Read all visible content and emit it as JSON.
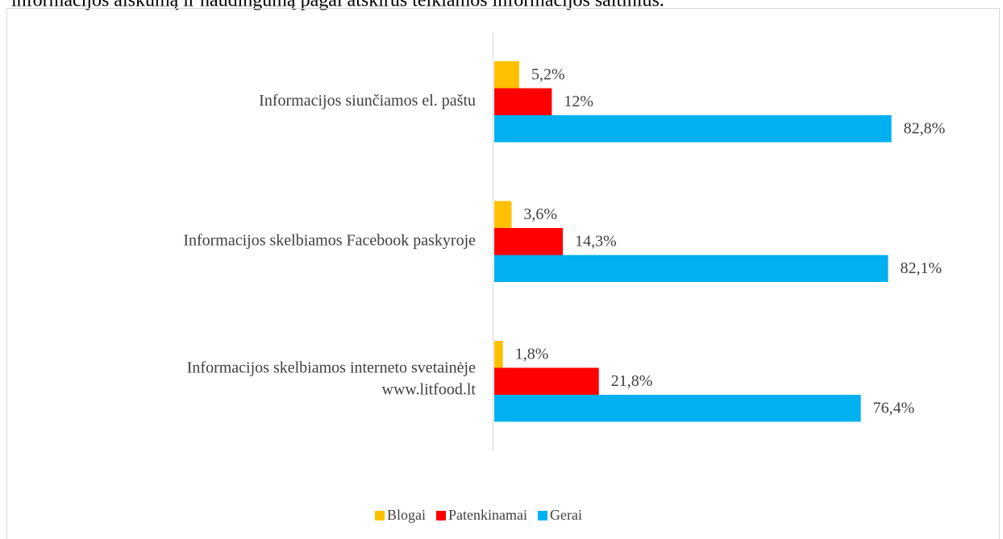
{
  "caption": "informacijos aiškumą ir naudingumą pagal atskirus teikiamos informacijos šaltinius.",
  "chart_data": {
    "type": "bar",
    "orientation": "horizontal",
    "categories": [
      "Informacijos siunčiamos el. paštu",
      "Informacijos skelbiamos Facebook paskyroje",
      [
        "Informacijos skelbiamos interneto svetainėje",
        "www.litfood.lt"
      ]
    ],
    "series": [
      {
        "name": "Blogai",
        "color": "#ffc000",
        "values": [
          5.2,
          3.6,
          1.8
        ],
        "value_labels": [
          "5,2%",
          "3,6%",
          "1,8%"
        ]
      },
      {
        "name": "Patenkinamai",
        "color": "#ff0000",
        "values": [
          12,
          14.3,
          21.8
        ],
        "value_labels": [
          "12%",
          "14,3%",
          "21,8%"
        ]
      },
      {
        "name": "Gerai",
        "color": "#00b0f0",
        "values": [
          82.8,
          82.1,
          76.4
        ],
        "value_labels": [
          "82,8%",
          "82,1%",
          "76,4%"
        ]
      }
    ],
    "xlim": [
      0,
      100
    ],
    "legend": "bottom"
  }
}
